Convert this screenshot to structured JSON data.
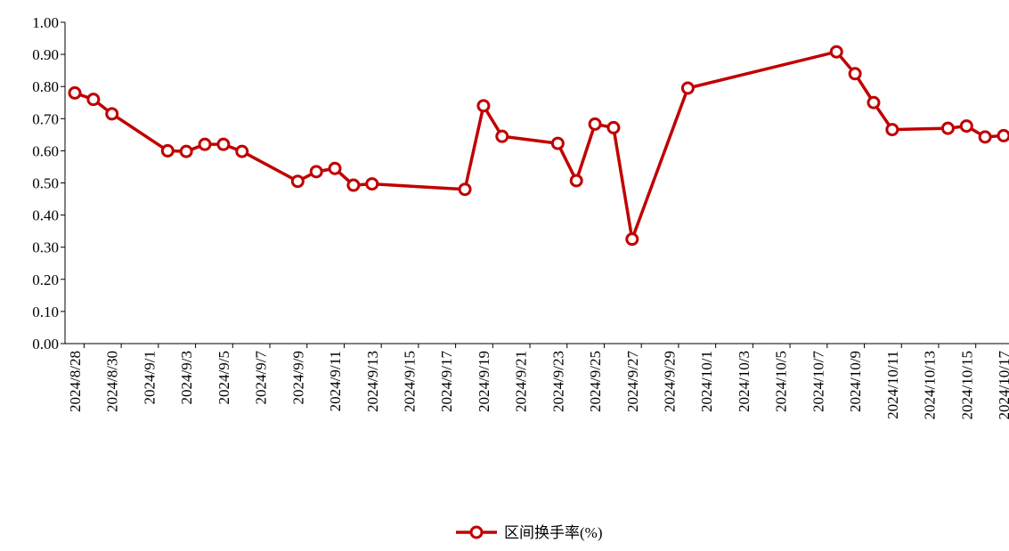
{
  "chart_data": {
    "type": "line",
    "x": [
      "2024/8/28",
      "2024/8/29",
      "2024/8/30",
      "2024/9/2",
      "2024/9/3",
      "2024/9/4",
      "2024/9/5",
      "2024/9/6",
      "2024/9/9",
      "2024/9/10",
      "2024/9/11",
      "2024/9/12",
      "2024/9/13",
      "2024/9/18",
      "2024/9/19",
      "2024/9/20",
      "2024/9/23",
      "2024/9/24",
      "2024/9/25",
      "2024/9/26",
      "2024/9/27",
      "2024/9/30",
      "2024/10/8",
      "2024/10/9",
      "2024/10/10",
      "2024/10/11",
      "2024/10/14",
      "2024/10/15",
      "2024/10/16",
      "2024/10/17"
    ],
    "series": [
      {
        "name": "区间换手率(%)",
        "color": "#c00000",
        "values": [
          0.78,
          0.76,
          0.715,
          0.6,
          0.598,
          0.62,
          0.62,
          0.598,
          0.505,
          0.535,
          0.545,
          0.493,
          0.497,
          0.48,
          0.74,
          0.645,
          0.623,
          0.507,
          0.683,
          0.672,
          0.325,
          0.795,
          0.908,
          0.84,
          0.75,
          0.666,
          0.67,
          0.677,
          0.643,
          0.647
        ]
      }
    ],
    "xlim": [
      "2024/8/28",
      "2024/10/17"
    ],
    "xticks": [
      "2024/8/28",
      "2024/8/30",
      "2024/9/1",
      "2024/9/3",
      "2024/9/5",
      "2024/9/7",
      "2024/9/9",
      "2024/9/11",
      "2024/9/13",
      "2024/9/15",
      "2024/9/17",
      "2024/9/19",
      "2024/9/21",
      "2024/9/23",
      "2024/9/25",
      "2024/9/27",
      "2024/9/29",
      "2024/10/1",
      "2024/10/3",
      "2024/10/5",
      "2024/10/7",
      "2024/10/9",
      "2024/10/11",
      "2024/10/13",
      "2024/10/15",
      "2024/10/17"
    ],
    "ylim": [
      0,
      1
    ],
    "yticks": [
      {
        "value": 0,
        "label": "0.00"
      },
      {
        "value": 0.1,
        "label": "0.10"
      },
      {
        "value": 0.2,
        "label": "0.20"
      },
      {
        "value": 0.3,
        "label": "0.30"
      },
      {
        "value": 0.4,
        "label": "0.40"
      },
      {
        "value": 0.5,
        "label": "0.50"
      },
      {
        "value": 0.6,
        "label": "0.60"
      },
      {
        "value": 0.7,
        "label": "0.70"
      },
      {
        "value": 0.8,
        "label": "0.80"
      },
      {
        "value": 0.9,
        "label": "0.90"
      },
      {
        "value": 1,
        "label": "1.00"
      }
    ],
    "legend": "bottom"
  }
}
